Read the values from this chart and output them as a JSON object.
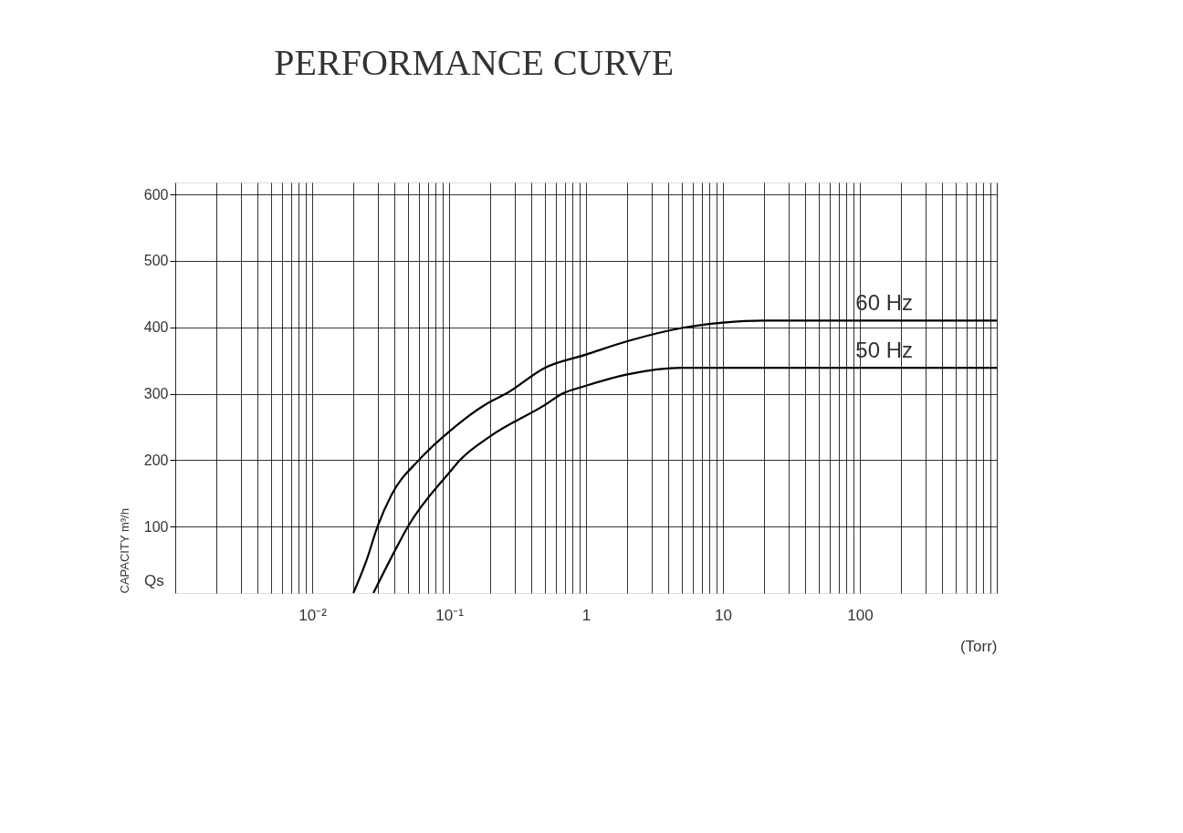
{
  "chart_data": {
    "type": "line",
    "title": "PERFORMANCE CURVE",
    "xlabel": "(Torr)",
    "ylabel": "CAPACITY m³/h",
    "annotations": [
      "Qs"
    ],
    "log": "x",
    "grid": true,
    "legend": false,
    "marker": "none",
    "line_style": "solid",
    "xlim": [
      0.001,
      1000
    ],
    "ylim": [
      0,
      618
    ],
    "xticks": [
      {
        "value": 0.001,
        "label": null
      },
      {
        "value": 0.002,
        "label": null
      },
      {
        "value": 0.003,
        "label": null
      },
      {
        "value": 0.004,
        "label": null
      },
      {
        "value": 0.005,
        "label": null
      },
      {
        "value": 0.006,
        "label": null
      },
      {
        "value": 0.007,
        "label": null
      },
      {
        "value": 0.008,
        "label": null
      },
      {
        "value": 0.009,
        "label": null
      },
      {
        "value": 0.01,
        "label": "10⁻²"
      },
      {
        "value": 0.02,
        "label": null
      },
      {
        "value": 0.03,
        "label": null
      },
      {
        "value": 0.04,
        "label": null
      },
      {
        "value": 0.05,
        "label": null
      },
      {
        "value": 0.06,
        "label": null
      },
      {
        "value": 0.07,
        "label": null
      },
      {
        "value": 0.08,
        "label": null
      },
      {
        "value": 0.09,
        "label": null
      },
      {
        "value": 0.1,
        "label": "10⁻¹"
      },
      {
        "value": 0.2,
        "label": null
      },
      {
        "value": 0.3,
        "label": null
      },
      {
        "value": 0.4,
        "label": null
      },
      {
        "value": 0.5,
        "label": null
      },
      {
        "value": 0.6,
        "label": null
      },
      {
        "value": 0.7,
        "label": null
      },
      {
        "value": 0.8,
        "label": null
      },
      {
        "value": 0.9,
        "label": null
      },
      1,
      {
        "value": 2,
        "label": null
      },
      {
        "value": 3,
        "label": null
      },
      {
        "value": 4,
        "label": null
      },
      {
        "value": 5,
        "label": null
      },
      {
        "value": 6,
        "label": null
      },
      {
        "value": 7,
        "label": null
      },
      {
        "value": 8,
        "label": null
      },
      {
        "value": 9,
        "label": null
      },
      10,
      {
        "value": 20,
        "label": null
      },
      {
        "value": 30,
        "label": null
      },
      {
        "value": 40,
        "label": null
      },
      {
        "value": 50,
        "label": null
      },
      {
        "value": 60,
        "label": null
      },
      {
        "value": 70,
        "label": null
      },
      {
        "value": 80,
        "label": null
      },
      {
        "value": 90,
        "label": null
      },
      100,
      {
        "value": 200,
        "label": null
      },
      {
        "value": 300,
        "label": null
      },
      {
        "value": 400,
        "label": null
      },
      {
        "value": 500,
        "label": null
      },
      {
        "value": 600,
        "label": null
      },
      {
        "value": 700,
        "label": null
      },
      {
        "value": 800,
        "label": null
      },
      {
        "value": 900,
        "label": null
      },
      {
        "value": 1000,
        "label": null
      }
    ],
    "yticks": [
      100,
      200,
      300,
      400,
      500,
      600
    ],
    "series": [
      {
        "name": "60 Hz",
        "color": "#000000",
        "x": [
          0.02,
          0.025,
          0.03,
          0.038,
          0.06,
          0.1,
          0.2,
          0.26,
          0.5,
          1,
          2,
          5,
          10,
          20,
          1000
        ],
        "values": [
          0,
          50,
          100,
          148,
          200,
          243,
          288,
          300,
          339,
          359,
          379,
          399,
          407,
          410,
          410
        ]
      },
      {
        "name": "50 Hz",
        "color": "#000000",
        "x": [
          0.028,
          0.04,
          0.05,
          0.1,
          0.12,
          0.2,
          0.5,
          0.67,
          1,
          2,
          5,
          1000
        ],
        "values": [
          0,
          63,
          100,
          181,
          200,
          236,
          283,
          300,
          312,
          329,
          339,
          339
        ]
      }
    ]
  }
}
